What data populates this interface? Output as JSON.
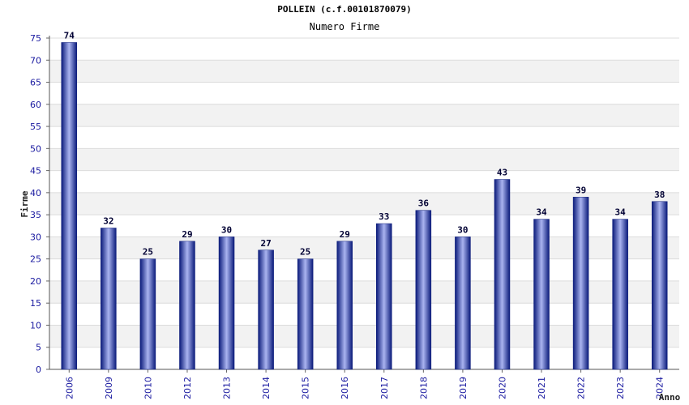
{
  "chart_data": {
    "type": "bar",
    "title": "POLLEIN (c.f.00101870079)",
    "subtitle": "Numero Firme",
    "xlabel": "Anno",
    "ylabel": "Firme",
    "ylim": [
      0,
      75
    ],
    "yticks": [
      0,
      5,
      10,
      15,
      20,
      25,
      30,
      35,
      40,
      45,
      50,
      55,
      60,
      65,
      70,
      75
    ],
    "categories": [
      "2006",
      "2009",
      "2010",
      "2012",
      "2013",
      "2014",
      "2015",
      "2016",
      "2017",
      "2018",
      "2019",
      "2020",
      "2021",
      "2022",
      "2023",
      "2024"
    ],
    "values": [
      74,
      32,
      25,
      29,
      30,
      27,
      25,
      29,
      33,
      36,
      30,
      43,
      34,
      39,
      34,
      38
    ],
    "grid": "horizontal bands",
    "colors": {
      "bar_dark": "#0a1a7a",
      "bar_light": "#aab4f0",
      "tick_text": "#1a1aa0",
      "band": "#f2f2f2"
    }
  }
}
